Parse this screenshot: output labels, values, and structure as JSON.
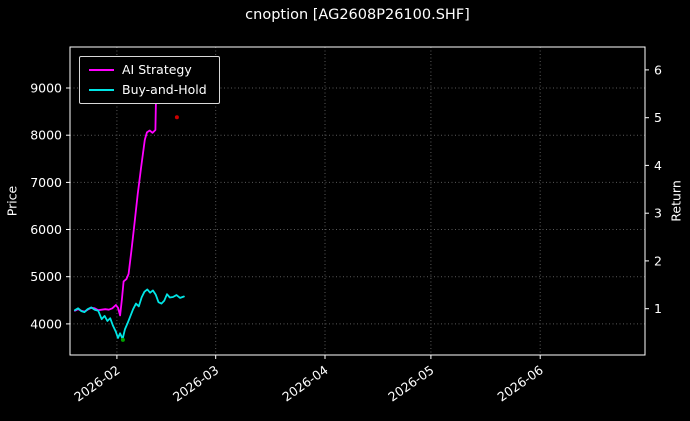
{
  "chart_data": {
    "type": "line",
    "title": "cnoption [AG2608P26100.SHF]",
    "ylabel_left": "Price",
    "ylabel_right": "Return",
    "legend_position": "upper left",
    "grid": true,
    "colors": {
      "background": "#000000",
      "text": "#ffffff",
      "grid": "#5a5a5a",
      "spine": "#ffffff",
      "ai_strategy": "#ff00ff",
      "buy_and_hold": "#00e5e5"
    },
    "x_domain_days": [
      0,
      163
    ],
    "x_ticks": [
      {
        "label": "2026-02",
        "day": 13.3
      },
      {
        "label": "2026-03",
        "day": 41.3
      },
      {
        "label": "2026-04",
        "day": 72.3
      },
      {
        "label": "2026-05",
        "day": 102.3
      },
      {
        "label": "2026-06",
        "day": 133.3
      }
    ],
    "price_ylim": [
      3340,
      9870
    ],
    "price_ticks": [
      4000,
      5000,
      6000,
      7000,
      8000,
      9000
    ],
    "return_ylim": [
      0.03,
      6.48
    ],
    "return_ticks": [
      1,
      2,
      3,
      4,
      5,
      6
    ],
    "series": [
      {
        "name": "AI Strategy",
        "color": "#ff00ff",
        "points": [
          [
            1.4,
            4280
          ],
          [
            2.3,
            4310
          ],
          [
            3.2,
            4280
          ],
          [
            4.1,
            4260
          ],
          [
            5.0,
            4300
          ],
          [
            6.0,
            4340
          ],
          [
            7.0,
            4330
          ],
          [
            8.0,
            4290
          ],
          [
            9.0,
            4300
          ],
          [
            10.0,
            4310
          ],
          [
            11.0,
            4300
          ],
          [
            12.0,
            4330
          ],
          [
            13.0,
            4400
          ],
          [
            13.6,
            4340
          ],
          [
            14.2,
            4180
          ],
          [
            14.7,
            4520
          ],
          [
            15.2,
            4900
          ],
          [
            16.0,
            4950
          ],
          [
            16.6,
            5060
          ],
          [
            17.4,
            5550
          ],
          [
            18.3,
            6150
          ],
          [
            19.2,
            6750
          ],
          [
            20.2,
            7350
          ],
          [
            21.2,
            7900
          ],
          [
            21.8,
            8060
          ],
          [
            22.6,
            8100
          ],
          [
            23.4,
            8050
          ],
          [
            24.2,
            8110
          ],
          [
            24.5,
            9240
          ],
          [
            25.5,
            9180
          ],
          [
            26.5,
            9280
          ],
          [
            27.8,
            9330
          ],
          [
            29.3,
            9400
          ],
          [
            30.3,
            9620
          ],
          [
            30.8,
            8760
          ]
        ]
      },
      {
        "name": "Buy-and-Hold",
        "color": "#00e5e5",
        "points": [
          [
            1.4,
            4290
          ],
          [
            2.3,
            4330
          ],
          [
            3.2,
            4270
          ],
          [
            4.1,
            4250
          ],
          [
            5.0,
            4310
          ],
          [
            6.0,
            4350
          ],
          [
            7.0,
            4300
          ],
          [
            8.0,
            4280
          ],
          [
            9.0,
            4100
          ],
          [
            9.8,
            4170
          ],
          [
            10.6,
            4060
          ],
          [
            11.4,
            4120
          ],
          [
            12.2,
            3960
          ],
          [
            13.0,
            3830
          ],
          [
            13.6,
            3700
          ],
          [
            14.2,
            3800
          ],
          [
            14.9,
            3680
          ],
          [
            15.6,
            3890
          ],
          [
            16.3,
            4010
          ],
          [
            17.1,
            4160
          ],
          [
            17.9,
            4310
          ],
          [
            18.7,
            4430
          ],
          [
            19.5,
            4370
          ],
          [
            20.3,
            4560
          ],
          [
            21.1,
            4680
          ],
          [
            21.9,
            4730
          ],
          [
            22.7,
            4660
          ],
          [
            23.5,
            4710
          ],
          [
            24.3,
            4620
          ],
          [
            25.1,
            4460
          ],
          [
            25.9,
            4430
          ],
          [
            26.7,
            4490
          ],
          [
            27.5,
            4630
          ],
          [
            28.3,
            4560
          ],
          [
            29.2,
            4570
          ],
          [
            30.2,
            4610
          ],
          [
            31.2,
            4550
          ],
          [
            32.3,
            4580
          ]
        ]
      }
    ],
    "markers": [
      {
        "color": "#00a000",
        "day": 15.0,
        "price": 3660
      },
      {
        "color": "#cc0000",
        "day": 30.3,
        "price": 8380
      }
    ]
  }
}
